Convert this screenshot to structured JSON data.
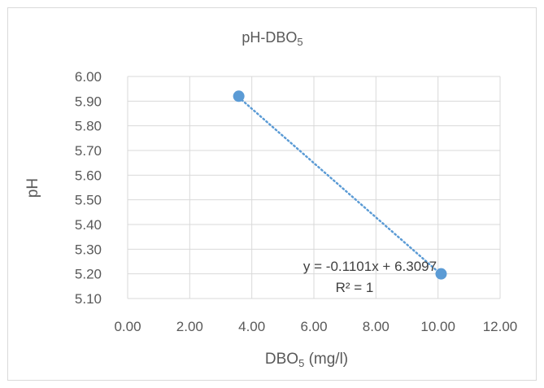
{
  "chart_data": {
    "type": "scatter",
    "title": {
      "main": "pH-DBO",
      "sub": "5"
    },
    "xlabel": {
      "main": "DBO",
      "sub": "5",
      "rest": " (mg/l)"
    },
    "ylabel": "pH",
    "xlim": [
      0,
      12
    ],
    "ylim": [
      5.1,
      6.0
    ],
    "xticks": [
      0,
      2,
      4,
      6,
      8,
      10,
      12
    ],
    "xtick_labels": [
      "0.00",
      "2.00",
      "4.00",
      "6.00",
      "8.00",
      "10.00",
      "12.00"
    ],
    "yticks": [
      5.1,
      5.2,
      5.3,
      5.4,
      5.5,
      5.6,
      5.7,
      5.8,
      5.9,
      6.0
    ],
    "ytick_labels": [
      "5.10",
      "5.20",
      "5.30",
      "5.40",
      "5.50",
      "5.60",
      "5.70",
      "5.80",
      "5.90",
      "6.00"
    ],
    "grid": true,
    "legend": "none",
    "series": [
      {
        "x": [
          3.58,
          10.1
        ],
        "y": [
          5.92,
          5.2
        ],
        "color": "#5b9bd5"
      }
    ],
    "trendline": {
      "type": "linear",
      "x_range": [
        3.58,
        10.1
      ],
      "slope": -0.1101,
      "intercept": 6.3097,
      "equation": "y = -0.1101x + 6.3097",
      "r2_label": "R² = 1",
      "color": "#5b9bd5",
      "style": "dotted"
    },
    "colors": {
      "grid": "#d9d9d9",
      "text": "#595959",
      "marker": "#5b9bd5"
    }
  }
}
